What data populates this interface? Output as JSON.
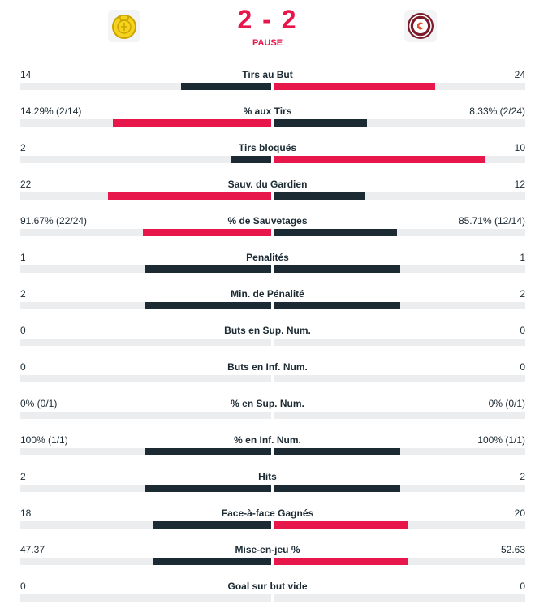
{
  "match": {
    "home_logo": "yellow-crest",
    "away_logo": "geneve-servette-crest",
    "score": "2 - 2",
    "status": "PAUSE"
  },
  "colors": {
    "accent": "#e8174b",
    "dark": "#1b2a33",
    "track": "#ebedef"
  },
  "stats": [
    {
      "name": "Tirs au But",
      "home": "14",
      "away": "24",
      "home_frac": 0.36,
      "away_frac": 0.64,
      "lead": "away"
    },
    {
      "name": "% aux Tirs",
      "home": "14.29% (2/14)",
      "away": "8.33% (2/24)",
      "home_frac": 0.63,
      "away_frac": 0.37,
      "lead": "home"
    },
    {
      "name": "Tirs bloqués",
      "home": "2",
      "away": "10",
      "home_frac": 0.16,
      "away_frac": 0.84,
      "lead": "away"
    },
    {
      "name": "Sauv. du Gardien",
      "home": "22",
      "away": "12",
      "home_frac": 0.65,
      "away_frac": 0.36,
      "lead": "home"
    },
    {
      "name": "% de Sauvetages",
      "home": "91.67% (22/24)",
      "away": "85.71% (12/14)",
      "home_frac": 0.51,
      "away_frac": 0.49,
      "lead": "home"
    },
    {
      "name": "Penalités",
      "home": "1",
      "away": "1",
      "home_frac": 0.5,
      "away_frac": 0.5,
      "lead": "none"
    },
    {
      "name": "Min. de Pénalité",
      "home": "2",
      "away": "2",
      "home_frac": 0.5,
      "away_frac": 0.5,
      "lead": "none"
    },
    {
      "name": "Buts en Sup. Num.",
      "home": "0",
      "away": "0",
      "home_frac": 0,
      "away_frac": 0,
      "lead": "none"
    },
    {
      "name": "Buts en Inf. Num.",
      "home": "0",
      "away": "0",
      "home_frac": 0,
      "away_frac": 0,
      "lead": "none"
    },
    {
      "name": "% en Sup. Num.",
      "home": "0% (0/1)",
      "away": "0% (0/1)",
      "home_frac": 0,
      "away_frac": 0,
      "lead": "none"
    },
    {
      "name": "% en Inf. Num.",
      "home": "100% (1/1)",
      "away": "100% (1/1)",
      "home_frac": 0.5,
      "away_frac": 0.5,
      "lead": "none"
    },
    {
      "name": "Hits",
      "home": "2",
      "away": "2",
      "home_frac": 0.5,
      "away_frac": 0.5,
      "lead": "none"
    },
    {
      "name": "Face-à-face Gagnés",
      "home": "18",
      "away": "20",
      "home_frac": 0.47,
      "away_frac": 0.53,
      "lead": "away"
    },
    {
      "name": "Mise-en-jeu %",
      "home": "47.37",
      "away": "52.63",
      "home_frac": 0.47,
      "away_frac": 0.53,
      "lead": "away"
    },
    {
      "name": "Goal sur but vide",
      "home": "0",
      "away": "0",
      "home_frac": 0,
      "away_frac": 0,
      "lead": "none"
    }
  ]
}
